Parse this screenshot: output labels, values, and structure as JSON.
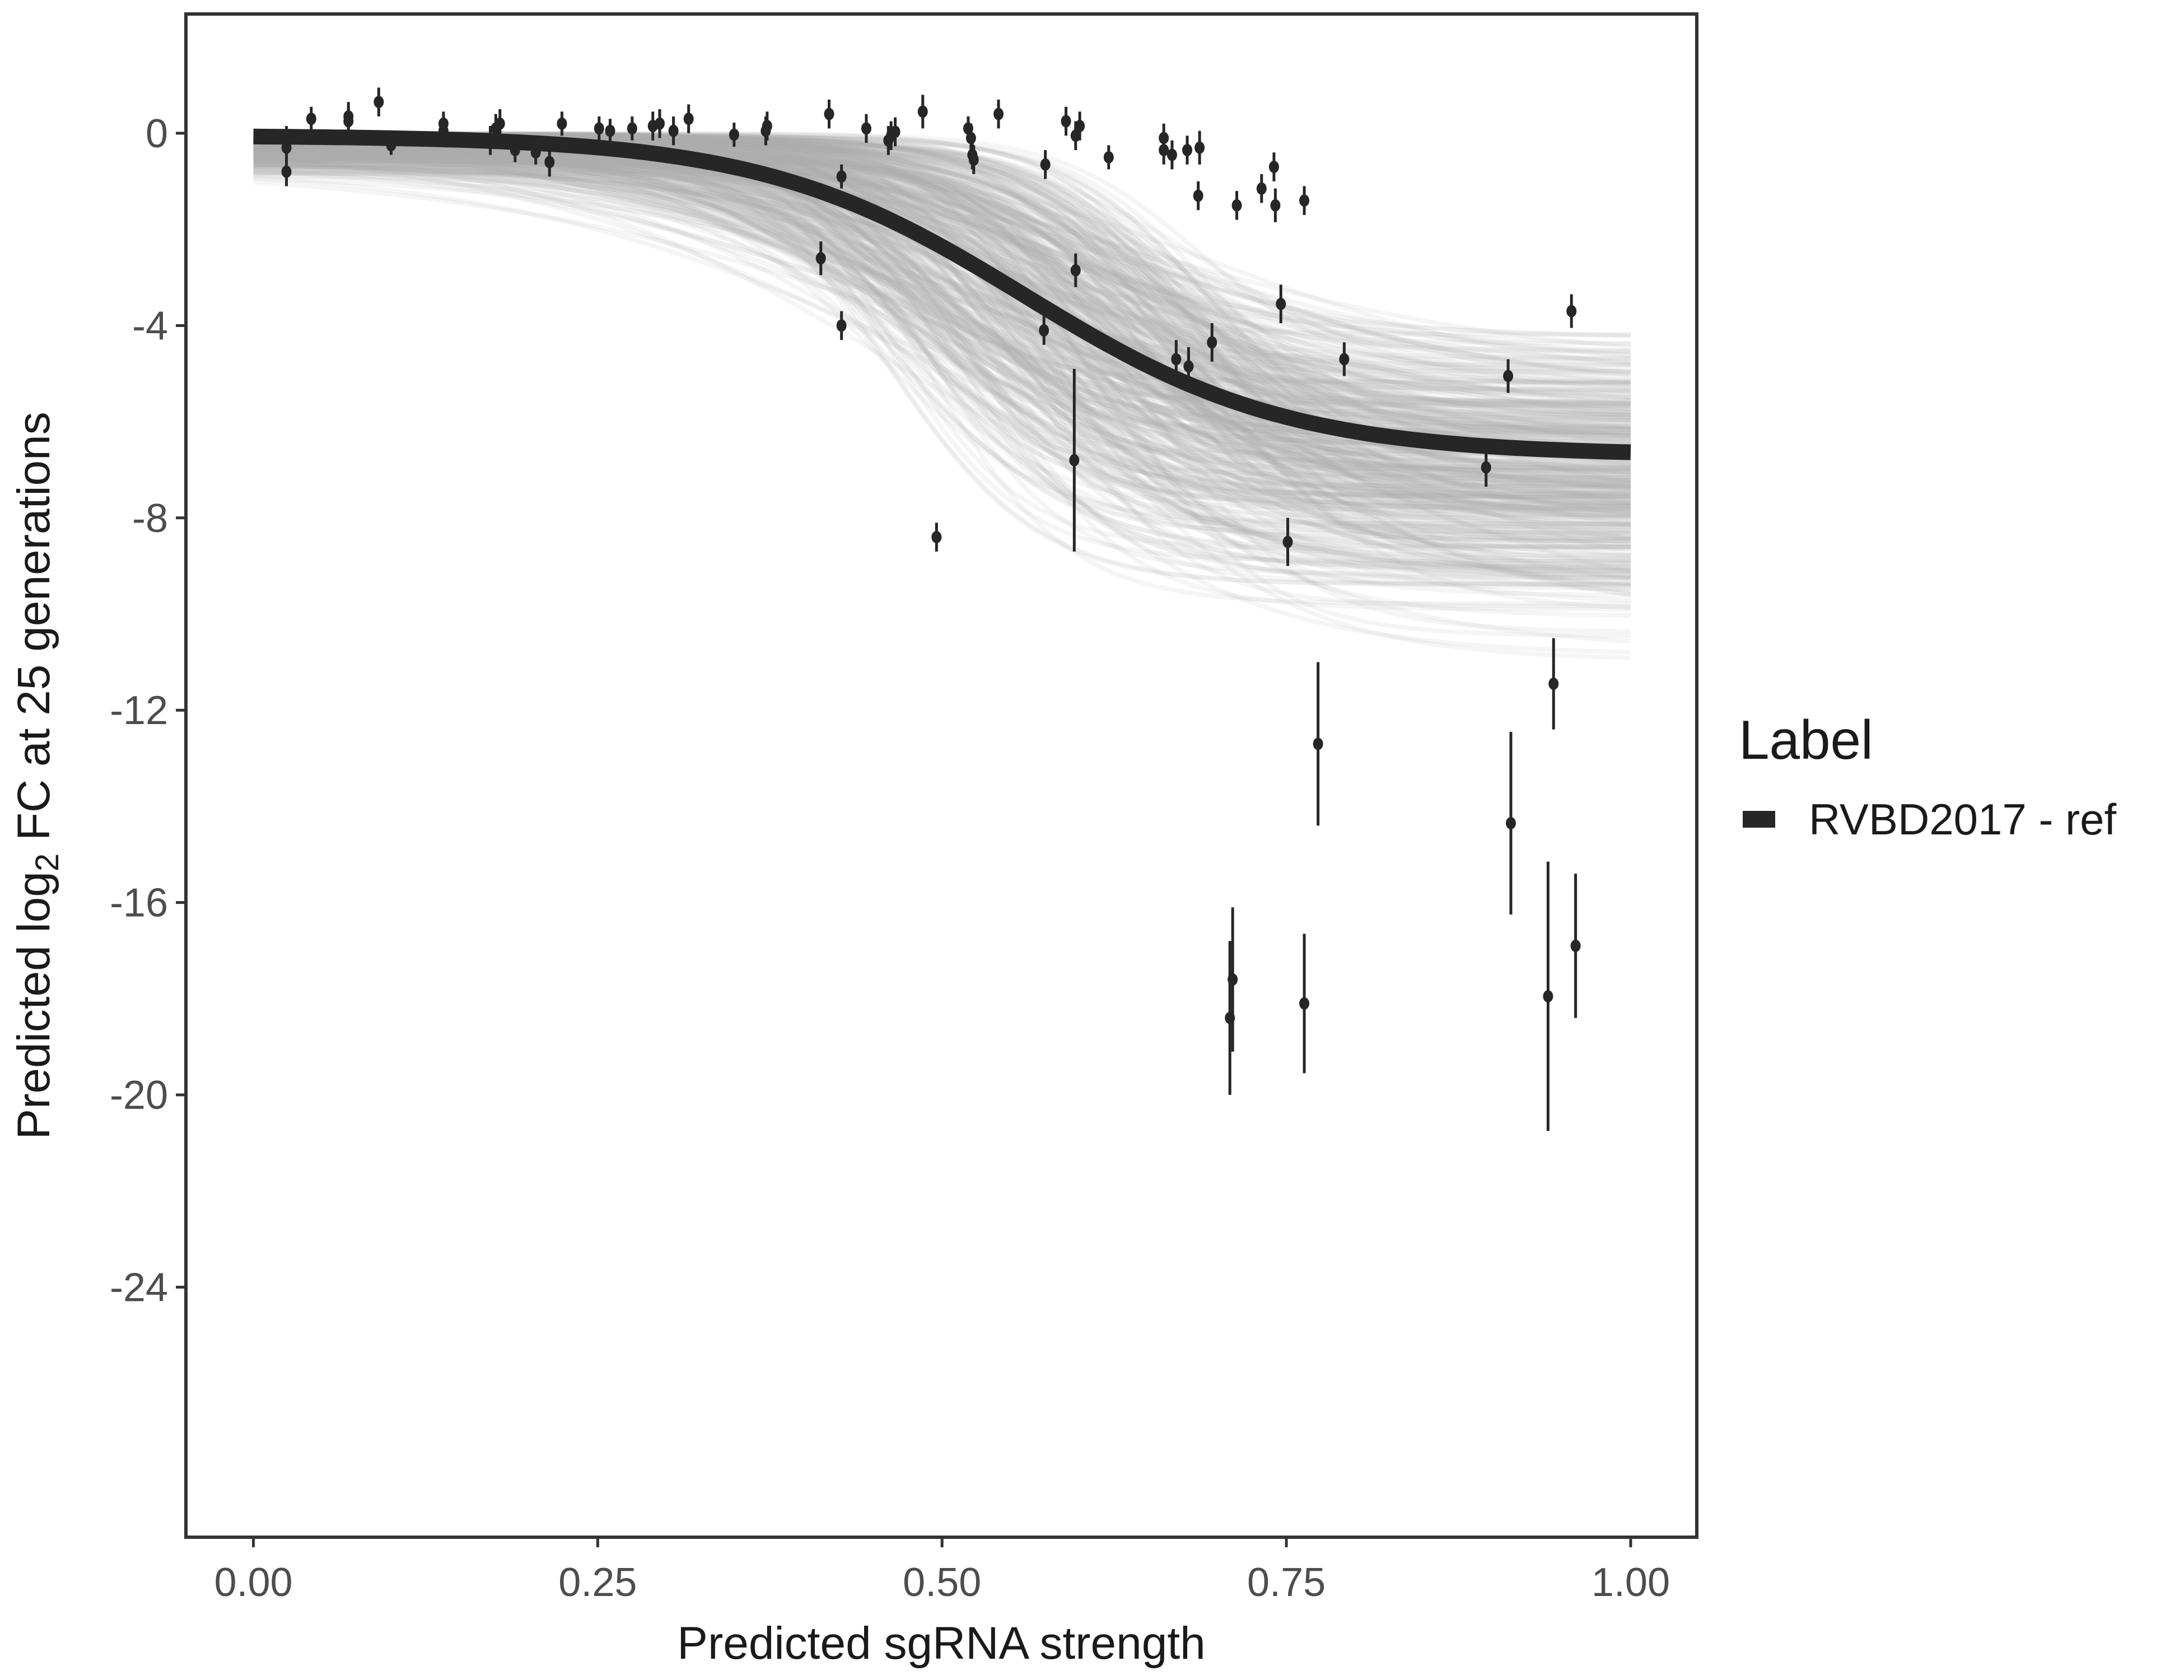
{
  "chart_data": {
    "type": "scatter",
    "title": "",
    "xlabel": "Predicted sgRNA strength",
    "ylabel_parts": [
      "Predicted  log",
      "2",
      " FC at 25 generations"
    ],
    "xlim": [
      -0.049,
      1.048
    ],
    "ylim": [
      -29.2,
      2.48
    ],
    "x_ticks": [
      0,
      0.25,
      0.5,
      0.75,
      1.0
    ],
    "x_tick_labels": [
      "0.00",
      "0.25",
      "0.50",
      "0.75",
      "1.00"
    ],
    "y_ticks": [
      0,
      -4,
      -8,
      -12,
      -16,
      -20,
      -24
    ],
    "y_tick_labels": [
      "0",
      "-4",
      "-8",
      "-12",
      "-16",
      "-20",
      "-24"
    ],
    "grid": false,
    "legend": {
      "title": "Label",
      "placement": "right",
      "entries": [
        {
          "label": "RVBD2017 - ref",
          "color": "#262626"
        }
      ]
    },
    "fit_curve": {
      "model": "logistic",
      "upper": -0.05,
      "lower": -6.7,
      "midpoint": 0.56,
      "slope": 10.5,
      "color": "#262626"
    },
    "posterior_draws": {
      "count": 400,
      "lower_range": [
        -11.4,
        -3.3
      ],
      "midpoint_range": [
        0.45,
        0.7
      ],
      "slope_range": [
        6,
        22
      ],
      "color": "#aaaaaa"
    },
    "points": [
      {
        "x": 0.024,
        "y": -0.15,
        "err": 0.3
      },
      {
        "x": 0.024,
        "y": -0.3,
        "err": 0.3
      },
      {
        "x": 0.024,
        "y": -0.8,
        "err": 0.3
      },
      {
        "x": 0.042,
        "y": 0.3,
        "err": 0.25
      },
      {
        "x": 0.069,
        "y": 0.35,
        "err": 0.3
      },
      {
        "x": 0.069,
        "y": 0.25,
        "err": 0.3
      },
      {
        "x": 0.091,
        "y": 0.65,
        "err": 0.3
      },
      {
        "x": 0.1,
        "y": -0.25,
        "err": 0.2
      },
      {
        "x": 0.138,
        "y": 0.2,
        "err": 0.25
      },
      {
        "x": 0.138,
        "y": 0.05,
        "err": 0.3
      },
      {
        "x": 0.172,
        "y": -0.15,
        "err": 0.3
      },
      {
        "x": 0.176,
        "y": 0.1,
        "err": 0.3
      },
      {
        "x": 0.179,
        "y": 0.2,
        "err": 0.3
      },
      {
        "x": 0.19,
        "y": -0.35,
        "err": 0.25
      },
      {
        "x": 0.205,
        "y": -0.4,
        "err": 0.25
      },
      {
        "x": 0.215,
        "y": -0.6,
        "err": 0.3
      },
      {
        "x": 0.224,
        "y": 0.2,
        "err": 0.25
      },
      {
        "x": 0.251,
        "y": 0.1,
        "err": 0.25
      },
      {
        "x": 0.259,
        "y": 0.05,
        "err": 0.25
      },
      {
        "x": 0.275,
        "y": 0.1,
        "err": 0.25
      },
      {
        "x": 0.29,
        "y": 0.15,
        "err": 0.3
      },
      {
        "x": 0.295,
        "y": 0.2,
        "err": 0.3
      },
      {
        "x": 0.305,
        "y": 0.05,
        "err": 0.3
      },
      {
        "x": 0.316,
        "y": 0.3,
        "err": 0.3
      },
      {
        "x": 0.349,
        "y": -0.03,
        "err": 0.25
      },
      {
        "x": 0.372,
        "y": 0.05,
        "err": 0.3
      },
      {
        "x": 0.373,
        "y": 0.15,
        "err": 0.3
      },
      {
        "x": 0.412,
        "y": -2.6,
        "err": 0.35
      },
      {
        "x": 0.418,
        "y": 0.4,
        "err": 0.3
      },
      {
        "x": 0.427,
        "y": -0.9,
        "err": 0.25
      },
      {
        "x": 0.427,
        "y": -4.0,
        "err": 0.3
      },
      {
        "x": 0.445,
        "y": 0.1,
        "err": 0.3
      },
      {
        "x": 0.461,
        "y": -0.15,
        "err": 0.3
      },
      {
        "x": 0.463,
        "y": -0.05,
        "err": 0.3
      },
      {
        "x": 0.466,
        "y": 0.03,
        "err": 0.3
      },
      {
        "x": 0.486,
        "y": 0.45,
        "err": 0.35
      },
      {
        "x": 0.496,
        "y": -8.4,
        "err": 0.3
      },
      {
        "x": 0.519,
        "y": 0.1,
        "err": 0.25
      },
      {
        "x": 0.521,
        "y": -0.1,
        "err": 0.3
      },
      {
        "x": 0.522,
        "y": -0.45,
        "err": 0.3
      },
      {
        "x": 0.523,
        "y": -0.55,
        "err": 0.3
      },
      {
        "x": 0.541,
        "y": 0.4,
        "err": 0.3
      },
      {
        "x": 0.575,
        "y": -0.65,
        "err": 0.3
      },
      {
        "x": 0.574,
        "y": -4.1,
        "err": 0.3
      },
      {
        "x": 0.59,
        "y": 0.25,
        "err": 0.3
      },
      {
        "x": 0.596,
        "y": -6.8,
        "err": 1.9
      },
      {
        "x": 0.597,
        "y": -0.05,
        "err": 0.3
      },
      {
        "x": 0.597,
        "y": -2.85,
        "err": 0.35
      },
      {
        "x": 0.6,
        "y": 0.15,
        "err": 0.3
      },
      {
        "x": 0.621,
        "y": -0.5,
        "err": 0.25
      },
      {
        "x": 0.661,
        "y": -0.1,
        "err": 0.3
      },
      {
        "x": 0.661,
        "y": -0.35,
        "err": 0.3
      },
      {
        "x": 0.667,
        "y": -0.45,
        "err": 0.3
      },
      {
        "x": 0.67,
        "y": -4.7,
        "err": 0.4
      },
      {
        "x": 0.678,
        "y": -0.35,
        "err": 0.3
      },
      {
        "x": 0.679,
        "y": -4.85,
        "err": 0.4
      },
      {
        "x": 0.687,
        "y": -0.3,
        "err": 0.35
      },
      {
        "x": 0.686,
        "y": -1.3,
        "err": 0.3
      },
      {
        "x": 0.696,
        "y": -4.35,
        "err": 0.4
      },
      {
        "x": 0.709,
        "y": -18.4,
        "err": 1.6
      },
      {
        "x": 0.711,
        "y": -17.6,
        "err": 1.5
      },
      {
        "x": 0.714,
        "y": -1.5,
        "err": 0.3
      },
      {
        "x": 0.732,
        "y": -1.15,
        "err": 0.3
      },
      {
        "x": 0.741,
        "y": -0.7,
        "err": 0.3
      },
      {
        "x": 0.742,
        "y": -1.5,
        "err": 0.35
      },
      {
        "x": 0.746,
        "y": -3.55,
        "err": 0.4
      },
      {
        "x": 0.751,
        "y": -8.5,
        "err": 0.5
      },
      {
        "x": 0.763,
        "y": -1.4,
        "err": 0.3
      },
      {
        "x": 0.763,
        "y": -18.1,
        "err": 1.45
      },
      {
        "x": 0.773,
        "y": -12.7,
        "err": 1.7
      },
      {
        "x": 0.792,
        "y": -4.7,
        "err": 0.35
      },
      {
        "x": 0.895,
        "y": -6.95,
        "err": 0.4
      },
      {
        "x": 0.911,
        "y": -5.05,
        "err": 0.35
      },
      {
        "x": 0.913,
        "y": -14.35,
        "err": 1.9
      },
      {
        "x": 0.94,
        "y": -17.95,
        "err": 2.8
      },
      {
        "x": 0.944,
        "y": -11.45,
        "err": 0.95
      },
      {
        "x": 0.957,
        "y": -3.7,
        "err": 0.35
      },
      {
        "x": 0.96,
        "y": -16.9,
        "err": 1.5
      }
    ],
    "point_color": "#262626"
  }
}
